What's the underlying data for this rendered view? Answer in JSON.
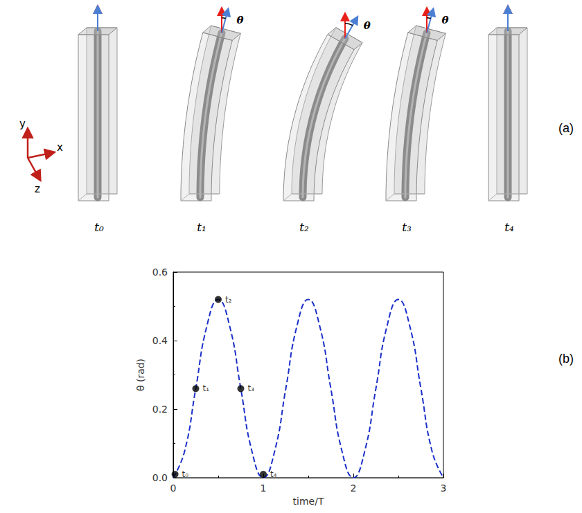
{
  "diagram": {
    "panel_label": "(a)",
    "axes": [
      "x",
      "y",
      "z"
    ],
    "angle_symbol": "θ",
    "frames": [
      {
        "label": "t₀",
        "theta": 0
      },
      {
        "label": "t₁",
        "theta": 0.26
      },
      {
        "label": "t₂",
        "theta": 0.52
      },
      {
        "label": "t₃",
        "theta": 0.26
      },
      {
        "label": "t₄",
        "theta": 0
      }
    ]
  },
  "chart_data": {
    "panel_label": "(b)",
    "type": "line",
    "xlabel": "time/T",
    "ylabel": "θ (rad)",
    "x": [
      0,
      0.125,
      0.25,
      0.375,
      0.5,
      0.625,
      0.75,
      0.875,
      1,
      1.125,
      1.25,
      1.375,
      1.5,
      1.625,
      1.75,
      1.875,
      2,
      2.125,
      2.25,
      2.375,
      2.5,
      2.625,
      2.75,
      2.875,
      3
    ],
    "values": [
      0,
      0.076,
      0.26,
      0.444,
      0.52,
      0.444,
      0.26,
      0.076,
      0,
      0.076,
      0.26,
      0.444,
      0.52,
      0.444,
      0.26,
      0.076,
      0,
      0.076,
      0.26,
      0.444,
      0.52,
      0.444,
      0.26,
      0.076,
      0
    ],
    "color": "#1a2fc8",
    "line_style": "dashed",
    "points": {
      "labels": [
        "t₀",
        "t₁",
        "t₂",
        "t₃",
        "t₄"
      ],
      "x": [
        0.02,
        0.25,
        0.5,
        0.75,
        1.0
      ],
      "y": [
        0.01,
        0.26,
        0.52,
        0.26,
        0.01
      ],
      "color": "#000000",
      "marker": "circle"
    },
    "xlim": [
      0,
      3
    ],
    "xticks": [
      0,
      1,
      2,
      3
    ],
    "ylim": [
      0,
      0.6
    ],
    "yticks": [
      {
        "value": 0,
        "label": "0.0"
      },
      {
        "value": 0.2,
        "label": "0.2"
      },
      {
        "value": 0.4,
        "label": "0.4"
      },
      {
        "value": 0.6,
        "label": "0.6"
      }
    ],
    "grid": false
  }
}
